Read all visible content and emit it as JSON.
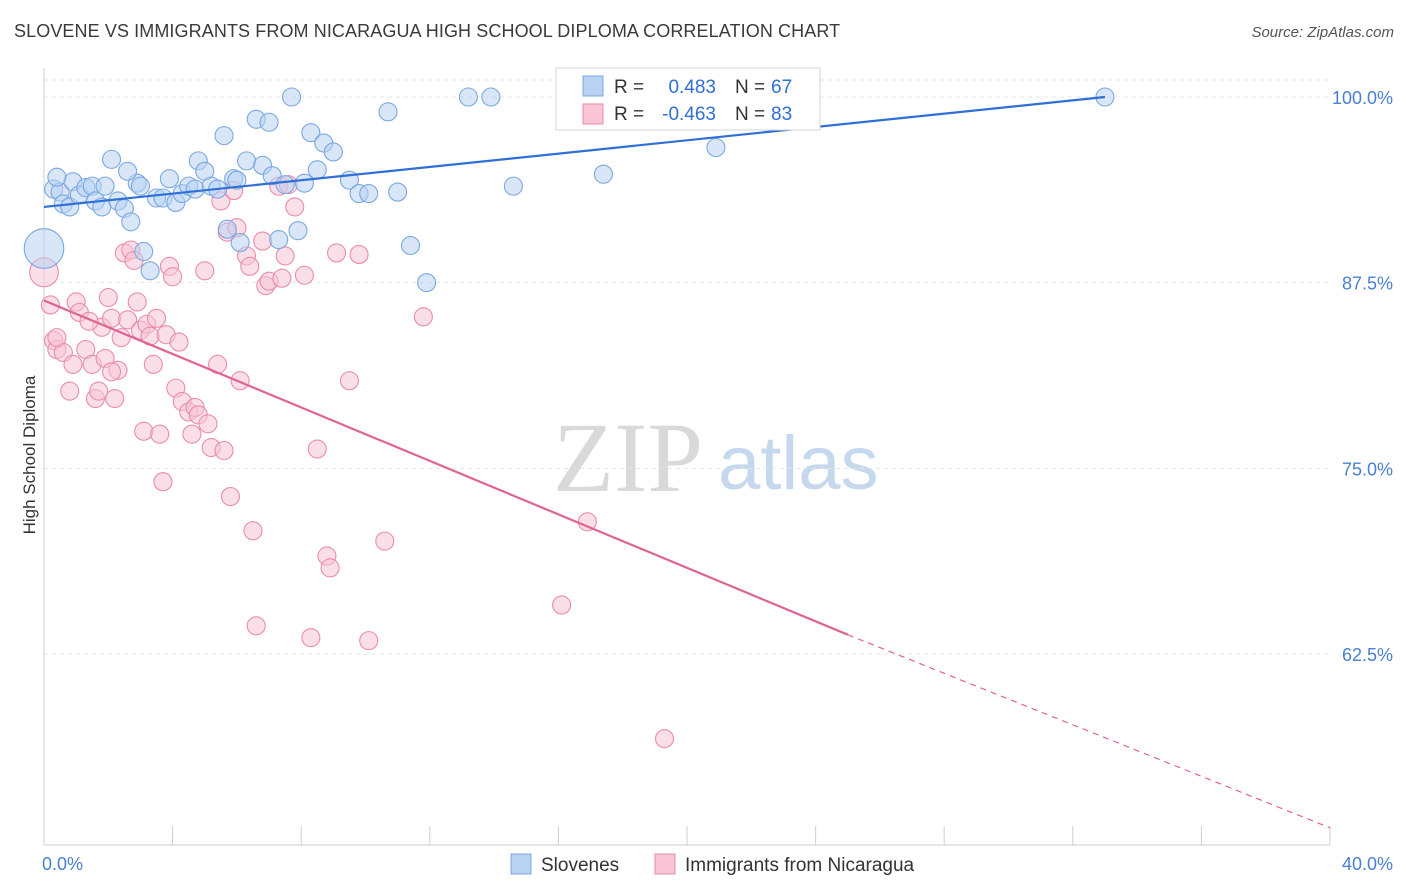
{
  "header": {
    "title": "SLOVENE VS IMMIGRANTS FROM NICARAGUA HIGH SCHOOL DIPLOMA CORRELATION CHART",
    "source": "Source: ZipAtlas.com"
  },
  "watermark": {
    "part1": "ZIP",
    "part2": "atlas"
  },
  "colors": {
    "blue_fill": "#b8d2f2",
    "blue_stroke": "#7aa8e0",
    "blue_line": "#2f6fd6",
    "pink_fill": "#f8c4d6",
    "pink_stroke": "#e98cab",
    "pink_line": "#e06493",
    "tick_label": "#4a7fd1",
    "grid": "#e4e4e4"
  },
  "legend": {
    "rows": [
      {
        "r_label": "R =",
        "r_value": "0.483",
        "n_label": "N =",
        "n_value": "67",
        "series": "blue"
      },
      {
        "r_label": "R =",
        "r_value": "-0.463",
        "n_label": "N =",
        "n_value": "83",
        "series": "pink"
      }
    ]
  },
  "bottom_legend": [
    "Slovenes",
    "Immigrants from Nicaragua"
  ],
  "chart_data": {
    "type": "scatter",
    "title": "SLOVENE VS IMMIGRANTS FROM NICARAGUA HIGH SCHOOL DIPLOMA CORRELATION CHART",
    "xlabel": "",
    "ylabel": "High School Diploma",
    "xlim": [
      0,
      40
    ],
    "ylim": [
      50.5,
      101.5
    ],
    "x_tick_labels": [
      "0.0%",
      "40.0%"
    ],
    "y_ticks": [
      62.5,
      75.0,
      87.5,
      100.0
    ],
    "y_tick_labels": [
      "62.5%",
      "75.0%",
      "87.5%",
      "100.0%"
    ],
    "grid": true,
    "legend_position": "top-center",
    "series": [
      {
        "name": "Slovenes",
        "color": "blue",
        "R": 0.483,
        "N": 67,
        "trend": {
          "x1": 0,
          "y1": 92.6,
          "x2": 33.0,
          "y2": 100.0,
          "dashed_to": null
        },
        "points": [
          [
            0.3,
            93.8,
            1
          ],
          [
            0.5,
            93.6,
            1
          ],
          [
            0.6,
            92.8,
            1
          ],
          [
            0.8,
            92.6,
            1
          ],
          [
            0.9,
            94.3,
            1
          ],
          [
            1.1,
            93.4,
            1
          ],
          [
            1.3,
            93.9,
            1
          ],
          [
            1.5,
            94.0,
            1
          ],
          [
            1.6,
            93.0,
            1
          ],
          [
            1.8,
            92.6,
            1
          ],
          [
            1.9,
            94.0,
            1
          ],
          [
            2.1,
            95.8,
            1
          ],
          [
            2.3,
            93.0,
            1
          ],
          [
            2.5,
            92.5,
            1
          ],
          [
            2.7,
            91.6,
            1
          ],
          [
            2.9,
            94.2,
            1
          ],
          [
            3.1,
            89.6,
            1
          ],
          [
            3.3,
            88.3,
            1
          ],
          [
            3.5,
            93.2,
            1
          ],
          [
            3.7,
            93.2,
            1
          ],
          [
            3.9,
            94.5,
            1
          ],
          [
            4.1,
            92.9,
            1
          ],
          [
            4.3,
            93.5,
            1
          ],
          [
            4.5,
            94.0,
            1
          ],
          [
            4.7,
            93.8,
            1
          ],
          [
            4.8,
            95.7,
            1
          ],
          [
            5.0,
            95.0,
            1
          ],
          [
            5.2,
            94.0,
            1
          ],
          [
            5.4,
            93.8,
            1
          ],
          [
            5.6,
            97.4,
            1
          ],
          [
            5.7,
            91.1,
            1
          ],
          [
            5.9,
            94.5,
            1
          ],
          [
            6.0,
            94.4,
            1
          ],
          [
            6.1,
            90.2,
            1
          ],
          [
            6.3,
            95.7,
            1
          ],
          [
            6.6,
            98.5,
            1
          ],
          [
            6.8,
            95.4,
            1
          ],
          [
            7.0,
            98.3,
            1
          ],
          [
            7.1,
            94.7,
            1
          ],
          [
            7.3,
            90.4,
            1
          ],
          [
            7.5,
            94.1,
            1
          ],
          [
            7.7,
            100.0,
            1
          ],
          [
            7.9,
            91.0,
            1
          ],
          [
            8.1,
            94.2,
            1
          ],
          [
            8.3,
            97.6,
            1
          ],
          [
            8.5,
            95.1,
            1
          ],
          [
            8.7,
            96.9,
            1
          ],
          [
            9.0,
            96.3,
            1
          ],
          [
            9.5,
            94.4,
            1
          ],
          [
            9.8,
            93.5,
            1
          ],
          [
            10.1,
            93.5,
            1
          ],
          [
            10.7,
            99.0,
            1
          ],
          [
            11.0,
            93.6,
            1
          ],
          [
            11.4,
            90.0,
            1
          ],
          [
            11.9,
            87.5,
            1
          ],
          [
            13.2,
            100.0,
            1
          ],
          [
            13.9,
            100.0,
            1
          ],
          [
            14.6,
            94.0,
            1
          ],
          [
            16.5,
            100.0,
            1
          ],
          [
            17.4,
            94.8,
            1
          ],
          [
            20.9,
            96.6,
            1
          ],
          [
            21.0,
            98.4,
            1
          ],
          [
            33.0,
            100.0,
            1
          ],
          [
            3.0,
            94.0,
            1
          ],
          [
            0.4,
            94.6,
            1
          ],
          [
            2.6,
            95.0,
            1
          ],
          [
            0.0,
            89.8,
            2.2
          ]
        ]
      },
      {
        "name": "Immigrants from Nicaragua",
        "color": "pink",
        "R": -0.463,
        "N": 83,
        "trend": {
          "x1": 0,
          "y1": 86.3,
          "x2": 25.0,
          "y2": 63.8,
          "dashed_to": [
            40.0,
            50.8
          ]
        },
        "points": [
          [
            0.0,
            88.2,
            1.6
          ],
          [
            0.2,
            86.0,
            1
          ],
          [
            0.3,
            83.6,
            1
          ],
          [
            0.4,
            83.0,
            1
          ],
          [
            0.6,
            82.8,
            1
          ],
          [
            0.8,
            80.2,
            1
          ],
          [
            0.9,
            82.0,
            1
          ],
          [
            1.0,
            86.2,
            1
          ],
          [
            1.1,
            85.5,
            1
          ],
          [
            1.3,
            83.0,
            1
          ],
          [
            1.5,
            82.0,
            1
          ],
          [
            1.6,
            79.7,
            1
          ],
          [
            1.7,
            80.2,
            1
          ],
          [
            1.8,
            84.5,
            1
          ],
          [
            1.9,
            82.4,
            1
          ],
          [
            2.0,
            86.5,
            1
          ],
          [
            2.1,
            85.1,
            1
          ],
          [
            2.2,
            79.7,
            1
          ],
          [
            2.3,
            81.6,
            1
          ],
          [
            2.4,
            83.8,
            1
          ],
          [
            2.5,
            89.5,
            1
          ],
          [
            2.6,
            85.0,
            1
          ],
          [
            2.7,
            89.7,
            1
          ],
          [
            2.8,
            89.0,
            1
          ],
          [
            2.9,
            86.2,
            1
          ],
          [
            3.0,
            84.3,
            1
          ],
          [
            3.1,
            77.5,
            1
          ],
          [
            3.2,
            84.7,
            1
          ],
          [
            3.3,
            83.9,
            1
          ],
          [
            3.4,
            82.0,
            1
          ],
          [
            3.5,
            85.1,
            1
          ],
          [
            3.6,
            77.3,
            1
          ],
          [
            3.7,
            74.1,
            1
          ],
          [
            3.8,
            84.0,
            1
          ],
          [
            3.9,
            88.6,
            1
          ],
          [
            4.0,
            87.9,
            1
          ],
          [
            4.1,
            80.4,
            1
          ],
          [
            4.2,
            83.5,
            1
          ],
          [
            4.3,
            79.5,
            1
          ],
          [
            4.5,
            78.8,
            1
          ],
          [
            4.6,
            77.3,
            1
          ],
          [
            4.7,
            79.1,
            1
          ],
          [
            4.8,
            78.6,
            1
          ],
          [
            5.0,
            88.3,
            1
          ],
          [
            5.1,
            78.0,
            1
          ],
          [
            5.2,
            76.4,
            1
          ],
          [
            5.4,
            82.0,
            1
          ],
          [
            5.5,
            93.0,
            1
          ],
          [
            5.6,
            76.2,
            1
          ],
          [
            5.7,
            90.9,
            1
          ],
          [
            5.8,
            73.1,
            1
          ],
          [
            5.9,
            93.7,
            1
          ],
          [
            6.0,
            91.2,
            1
          ],
          [
            6.1,
            80.9,
            1
          ],
          [
            6.3,
            89.3,
            1
          ],
          [
            6.4,
            88.6,
            1
          ],
          [
            6.5,
            70.8,
            1
          ],
          [
            6.6,
            64.4,
            1
          ],
          [
            6.8,
            90.3,
            1
          ],
          [
            6.9,
            87.3,
            1
          ],
          [
            7.0,
            87.6,
            1
          ],
          [
            7.3,
            94.0,
            1
          ],
          [
            7.4,
            87.8,
            1
          ],
          [
            7.5,
            89.3,
            1
          ],
          [
            7.6,
            94.1,
            1
          ],
          [
            7.8,
            92.6,
            1
          ],
          [
            8.1,
            88.0,
            1
          ],
          [
            8.3,
            63.6,
            1
          ],
          [
            8.5,
            76.3,
            1
          ],
          [
            8.8,
            69.1,
            1
          ],
          [
            8.9,
            68.3,
            1
          ],
          [
            9.1,
            89.5,
            1
          ],
          [
            9.5,
            80.9,
            1
          ],
          [
            9.8,
            89.4,
            1
          ],
          [
            10.1,
            63.4,
            1
          ],
          [
            10.6,
            70.1,
            1
          ],
          [
            11.8,
            85.2,
            1
          ],
          [
            16.1,
            65.8,
            1
          ],
          [
            16.9,
            71.4,
            1
          ],
          [
            19.3,
            56.8,
            1
          ],
          [
            0.4,
            83.8,
            1
          ],
          [
            1.4,
            84.9,
            1
          ],
          [
            2.1,
            81.5,
            1
          ]
        ]
      }
    ]
  }
}
